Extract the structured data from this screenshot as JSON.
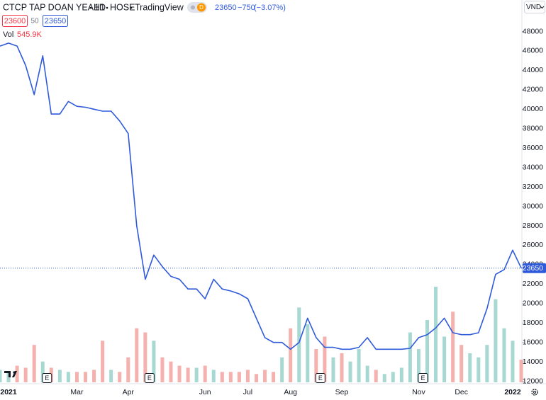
{
  "chart_data": {
    "type": "line",
    "symbol": "CTCP TAP DOAN YEAH1",
    "interval": "1D",
    "exchange": "HOSE",
    "source": "TradingView",
    "interval_badge": "D",
    "last_price": 23650,
    "change": {
      "value": -750,
      "label": "−750"
    },
    "change_percent": {
      "value": -3.07,
      "label": "(−3.07%)"
    },
    "bid": 23600,
    "spread": 50,
    "ask": 23650,
    "currency": "VND",
    "volume_legend": {
      "name": "Vol",
      "value": 545900,
      "label": "545.9K"
    },
    "events": [
      "E",
      "E",
      "E",
      "E"
    ],
    "categories": [
      null,
      "2021",
      null,
      null,
      null,
      null,
      null,
      null,
      null,
      "Mar",
      null,
      null,
      null,
      null,
      null,
      "Apr",
      null,
      null,
      null,
      null,
      null,
      null,
      null,
      null,
      "Jun",
      null,
      null,
      null,
      null,
      "Jul",
      null,
      null,
      null,
      null,
      "Aug",
      null,
      null,
      null,
      null,
      null,
      "Sep",
      null,
      null,
      null,
      null,
      null,
      null,
      null,
      null,
      "Nov",
      null,
      null,
      null,
      null,
      "Dec",
      null,
      null,
      null,
      null,
      null,
      "2022",
      null
    ],
    "series": [
      {
        "name": "CTCP TAP DOAN YEAH1",
        "color": "#2f5bdb",
        "values": [
          46500,
          46800,
          46500,
          44500,
          41500,
          45500,
          39500,
          39500,
          40800,
          40300,
          40200,
          40000,
          39800,
          39800,
          38800,
          37500,
          28000,
          22500,
          25000,
          23800,
          22800,
          22500,
          21500,
          21500,
          20500,
          22500,
          21500,
          21300,
          21000,
          20500,
          18500,
          16500,
          16000,
          16000,
          15300,
          16000,
          18500,
          16500,
          15500,
          15500,
          15300,
          15300,
          15500,
          16500,
          15300,
          15300,
          15300,
          15300,
          15400,
          16500,
          16800,
          17500,
          18500,
          17000,
          16800,
          16800,
          17000,
          19500,
          23000,
          23500,
          25500,
          23650
        ]
      },
      {
        "name": "Vol",
        "up_color": "#a8d8d2",
        "down_color": "#f4b1ae",
        "values": [
          300000,
          250000,
          400000,
          350000,
          900000,
          500000,
          350000,
          300000,
          250000,
          250000,
          250000,
          300000,
          1000000,
          300000,
          250000,
          600000,
          1300000,
          1200000,
          1000000,
          600000,
          500000,
          400000,
          350000,
          350000,
          400000,
          300000,
          250000,
          250000,
          250000,
          300000,
          200000,
          300000,
          250000,
          600000,
          1300000,
          1800000,
          1400000,
          800000,
          1100000,
          600000,
          700000,
          500000,
          800000,
          400000,
          300000,
          200000,
          250000,
          350000,
          1200000,
          800000,
          1500000,
          2300000,
          1100000,
          1700000,
          900000,
          700000,
          600000,
          900000,
          2000000,
          1300000,
          1000000,
          545900
        ]
      }
    ],
    "ylim": [
      11900,
      49200
    ],
    "yticks": [
      12000,
      14000,
      16000,
      18000,
      20000,
      22000,
      24000,
      26000,
      28000,
      30000,
      32000,
      34000,
      36000,
      38000,
      40000,
      42000,
      44000,
      46000,
      48000
    ],
    "grid": false
  }
}
